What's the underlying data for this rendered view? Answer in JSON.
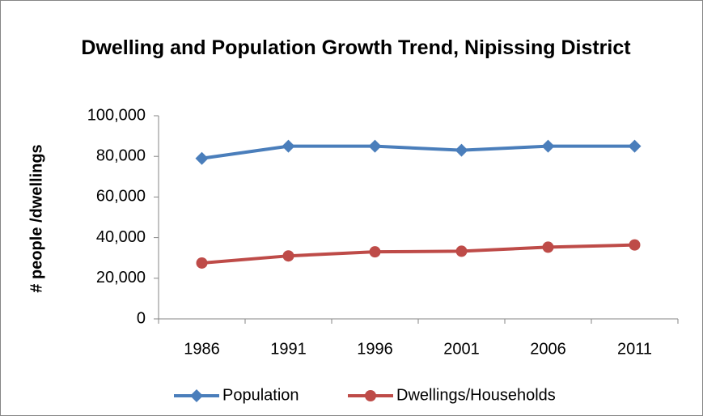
{
  "chart_data": {
    "type": "line",
    "title": "Dwelling and Population Growth Trend, Nipissing District",
    "y_label": "# people /dwellings",
    "categories": [
      "1986",
      "1991",
      "1996",
      "2001",
      "2006",
      "2011"
    ],
    "series": [
      {
        "name": "Population",
        "color": "#4a7ebb",
        "values": [
          79000,
          85000,
          85000,
          83000,
          85000,
          85000
        ]
      },
      {
        "name": "Dwellings/Households",
        "color": "#be4b48",
        "values": [
          27500,
          31000,
          33000,
          33300,
          35300,
          36400
        ]
      }
    ],
    "ylim": [
      0,
      100000
    ],
    "yticks": [
      0,
      {
        "value": 20000,
        "label": "20,000"
      },
      {
        "value": 40000,
        "label": "40,000"
      },
      {
        "value": 60000,
        "label": "60,000"
      },
      {
        "value": 80000,
        "label": "80,000"
      },
      {
        "value": 100000,
        "label": "100,000"
      }
    ],
    "grid": false,
    "legend": "bottom"
  }
}
